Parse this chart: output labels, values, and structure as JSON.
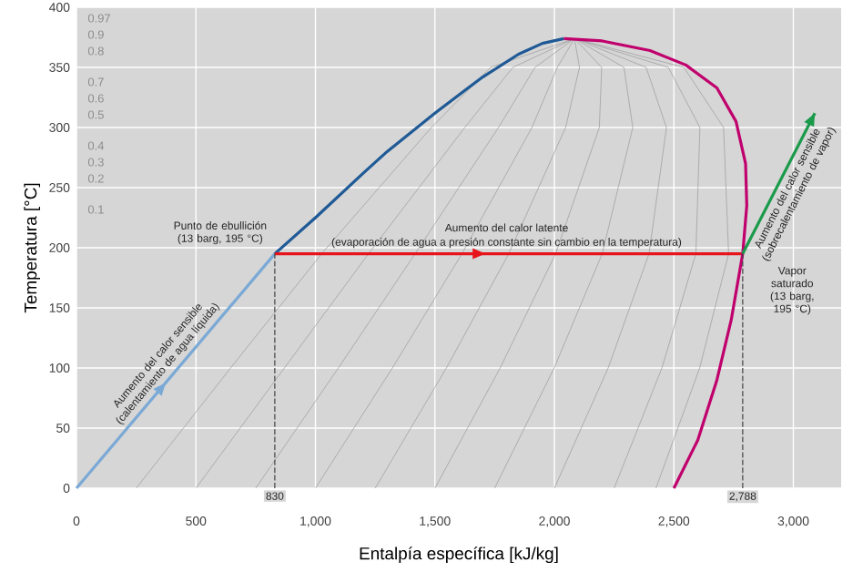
{
  "chart_data": {
    "type": "line",
    "xlabel": "Entalpía específica [kJ/kg]",
    "ylabel": "Temperatura [°C]",
    "xlim": [
      0,
      3200
    ],
    "ylim": [
      0,
      400
    ],
    "xticks": [
      0,
      500,
      {
        "value": 1000,
        "label": "1,000"
      },
      {
        "value": 1500,
        "label": "1,500"
      },
      {
        "value": 2000,
        "label": "2,000"
      },
      {
        "value": 2500,
        "label": "2,500"
      },
      {
        "value": 3000,
        "label": "3,000"
      }
    ],
    "yticks": [
      0,
      50,
      100,
      150,
      200,
      250,
      300,
      350,
      400
    ],
    "grid": true,
    "line_style": "solid",
    "marker": "none",
    "series": [
      {
        "color": "#999999",
        "x": [
          250,
          645,
          1026,
          1485,
          1733,
          2084
        ],
        "values": [
          0,
          100,
          195,
          300,
          350,
          374
        ]
      },
      {
        "color": "#999999",
        "x": [
          500,
          870,
          1222,
          1625,
          1826,
          2084
        ],
        "values": [
          0,
          100,
          195,
          300,
          350,
          374
        ]
      },
      {
        "color": "#999999",
        "x": [
          750,
          1096,
          1417,
          1766,
          1919,
          2084
        ],
        "values": [
          0,
          100,
          195,
          300,
          350,
          374
        ]
      },
      {
        "color": "#999999",
        "x": [
          1000,
          1322,
          1613,
          1906,
          2012,
          2084
        ],
        "values": [
          0,
          100,
          195,
          300,
          350,
          374
        ]
      },
      {
        "color": "#999999",
        "x": [
          1250,
          1548,
          1809,
          2047,
          2105,
          2084
        ],
        "values": [
          0,
          100,
          195,
          300,
          350,
          374
        ]
      },
      {
        "color": "#999999",
        "x": [
          1500,
          1773,
          2005,
          2188,
          2198,
          2084
        ],
        "values": [
          0,
          100,
          195,
          300,
          350,
          374
        ]
      },
      {
        "color": "#999999",
        "x": [
          1750,
          1999,
          2200,
          2328,
          2291,
          2084
        ],
        "values": [
          0,
          100,
          195,
          300,
          350,
          374
        ]
      },
      {
        "color": "#999999",
        "x": [
          2000,
          2225,
          2396,
          2469,
          2384,
          2084
        ],
        "values": [
          0,
          100,
          195,
          300,
          350,
          374
        ]
      },
      {
        "color": "#999999",
        "x": [
          2250,
          2450,
          2592,
          2609,
          2477,
          2084
        ],
        "values": [
          0,
          100,
          195,
          300,
          350,
          374
        ]
      },
      {
        "color": "#999999",
        "x": [
          2425,
          2608,
          2729,
          2708,
          2542,
          2084
        ],
        "values": [
          0,
          100,
          195,
          300,
          350,
          374
        ]
      },
      {
        "color": "#444444",
        "line_style": "dashed",
        "x": [
          830,
          830
        ],
        "values": [
          0,
          195
        ]
      },
      {
        "color": "#444444",
        "line_style": "dashed",
        "x": [
          2788,
          2788
        ],
        "values": [
          0,
          195
        ]
      },
      {
        "color": "#7aa9d6",
        "x": [
          0,
          830
        ],
        "values": [
          0,
          195
        ]
      },
      {
        "color": "#1f5a96",
        "x": [
          830,
          1000,
          1200,
          1300,
          1500,
          1700,
          1850,
          1950,
          2040
        ],
        "values": [
          195,
          225,
          262,
          280,
          312,
          342,
          361,
          370,
          374
        ]
      },
      {
        "color": "#e8141c",
        "x": [
          830,
          2788
        ],
        "values": [
          195,
          195
        ]
      },
      {
        "color": "#c0006c",
        "x": [
          2040,
          2200,
          2400,
          2550,
          2680,
          2760,
          2800,
          2805,
          2788,
          2740,
          2680,
          2600,
          2500
        ],
        "values": [
          374,
          372,
          364,
          352,
          333,
          305,
          270,
          235,
          195,
          140,
          90,
          40,
          0
        ]
      },
      {
        "color": "#1a9a4a",
        "x": [
          2788,
          3090
        ],
        "values": [
          195,
          312
        ]
      }
    ],
    "annotations": [
      {
        "text": "Punto de ebullición (13 barg, 195 °C)",
        "x": 830,
        "y": 195
      },
      {
        "text": "Aumento del calor latente",
        "x": 1800,
        "y": 195
      },
      {
        "text": "(evaporación de agua a presión constante sin cambio en la temperatura)",
        "x": 1800,
        "y": 195
      },
      {
        "text": "Aumento del calor sensible (calentamiento de agua líquida)",
        "x": 415,
        "y": 98
      },
      {
        "text": "Aumento del calor sensible (sobrecalentamiento de vapor)",
        "x": 2940,
        "y": 253
      },
      {
        "text": "Vapor saturado (13 barg, 195 °C)",
        "x": 2788,
        "y": 195
      },
      {
        "text": "830",
        "x": 830,
        "y": 0
      },
      {
        "text": "2,788",
        "x": 2788,
        "y": 0
      },
      "0.97",
      "0.9",
      "0.8",
      "0.7",
      "0.6",
      "0.5",
      "0.4",
      "0.3",
      "0.2",
      "0.1"
    ]
  }
}
